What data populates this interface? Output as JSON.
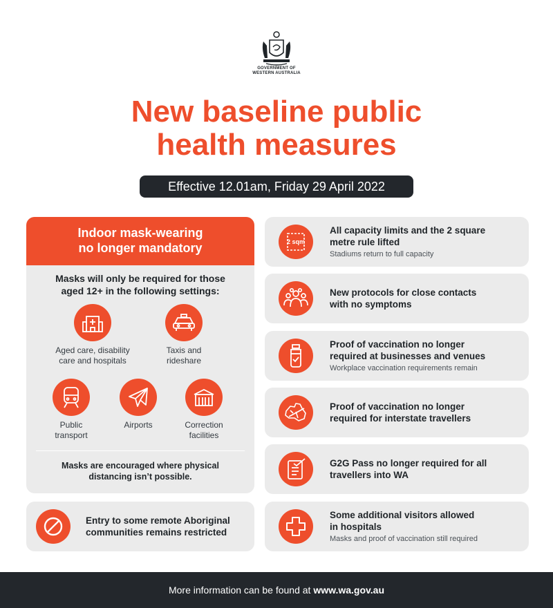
{
  "logo": {
    "line1": "GOVERNMENT OF",
    "line2": "WESTERN AUSTRALIA"
  },
  "title": {
    "line1": "New baseline public",
    "line2": "health measures"
  },
  "effective": "Effective 12.01am, Friday 29 April 2022",
  "mask_panel": {
    "heading_line1": "Indoor mask-wearing",
    "heading_line2": "no longer mandatory",
    "intro_line1": "Masks will only be required for those",
    "intro_line2": "aged 12+ in the following settings:",
    "settings": [
      {
        "icon": "hospital-icon",
        "line1": "Aged care, disability",
        "line2": "care and hospitals"
      },
      {
        "icon": "taxi-icon",
        "line1": "Taxis and",
        "line2": "rideshare"
      },
      {
        "icon": "train-icon",
        "line1": "Public",
        "line2": "transport"
      },
      {
        "icon": "plane-icon",
        "line1": "Airports",
        "line2": ""
      },
      {
        "icon": "building-icon",
        "line1": "Correction",
        "line2": "facilities"
      }
    ],
    "encourage_line1": "Masks are encouraged where physical",
    "encourage_line2": "distancing isn’t possible."
  },
  "aboriginal": {
    "icon": "prohibited-icon",
    "line1": "Entry to some remote Aboriginal",
    "line2": "communities remains restricted"
  },
  "measures": [
    {
      "icon": "square-metre-icon",
      "icon_text": "2 sqm",
      "line1": "All capacity limits and the 2 square",
      "line2": "metre rule lifted",
      "sub": "Stadiums return to full capacity"
    },
    {
      "icon": "people-group-icon",
      "line1": "New protocols for close contacts",
      "line2": "with no symptoms",
      "sub": ""
    },
    {
      "icon": "vaccine-vial-icon",
      "line1": "Proof of vaccination no longer",
      "line2": "required at businesses and venues",
      "sub": "Workplace vaccination requirements remain"
    },
    {
      "icon": "australia-plane-icon",
      "line1": "Proof of vaccination no longer",
      "line2": "required for interstate travellers",
      "sub": ""
    },
    {
      "icon": "checklist-icon",
      "line1": "G2G Pass no longer required for all",
      "line2": "travellers into WA",
      "sub": ""
    },
    {
      "icon": "medical-cross-icon",
      "line1": "Some additional visitors allowed",
      "line2": "in hospitals",
      "sub": "Masks and proof of vaccination still required"
    }
  ],
  "footer": {
    "text": "More information can be found at",
    "link": "www.wa.gov.au"
  },
  "colors": {
    "accent": "#ee4e2c",
    "dark": "#23272c",
    "card": "#ebebeb"
  }
}
